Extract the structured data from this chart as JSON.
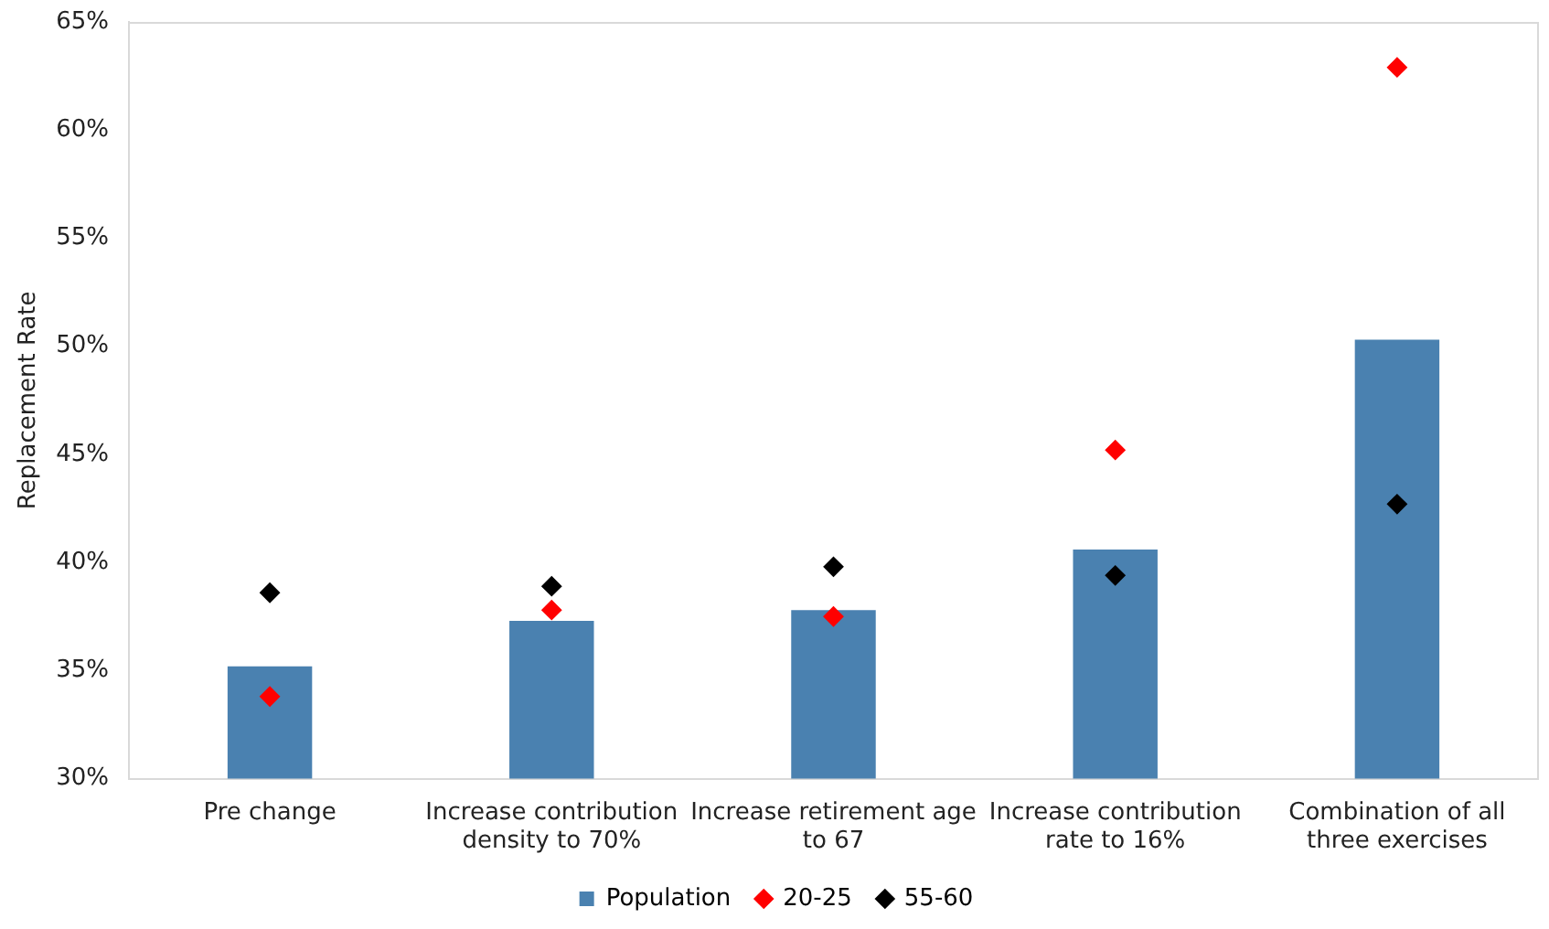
{
  "chart_data": {
    "type": "bar",
    "ylabel": "Replacement Rate",
    "categories": [
      "Pre change",
      "Increase contribution density to 70%",
      "Increase retirement age to 67",
      "Increase contribution rate to 16%",
      "Combination of all three exercises"
    ],
    "series": [
      {
        "name": "Population",
        "color": "#4a81b0",
        "values": [
          35.2,
          37.3,
          37.8,
          40.6,
          50.3
        ]
      },
      {
        "name": "20-25",
        "type": "scatter",
        "marker": "diamond",
        "color": "#ff0000",
        "values": [
          33.8,
          37.8,
          37.5,
          45.2,
          62.9
        ]
      },
      {
        "name": "55-60",
        "type": "scatter",
        "marker": "diamond",
        "color": "#000000",
        "values": [
          38.6,
          38.9,
          39.8,
          39.4,
          42.7
        ]
      }
    ],
    "ylim": [
      30,
      65
    ],
    "yticks": [
      {
        "value": 30,
        "label": "30%"
      },
      {
        "value": 35,
        "label": "35%"
      },
      {
        "value": 40,
        "label": "40%"
      },
      {
        "value": 45,
        "label": "45%"
      },
      {
        "value": 50,
        "label": "50%"
      },
      {
        "value": 55,
        "label": "55%"
      },
      {
        "value": 60,
        "label": "60%"
      },
      {
        "value": 65,
        "label": "65%"
      }
    ],
    "grid": false,
    "legend": "bottom"
  }
}
